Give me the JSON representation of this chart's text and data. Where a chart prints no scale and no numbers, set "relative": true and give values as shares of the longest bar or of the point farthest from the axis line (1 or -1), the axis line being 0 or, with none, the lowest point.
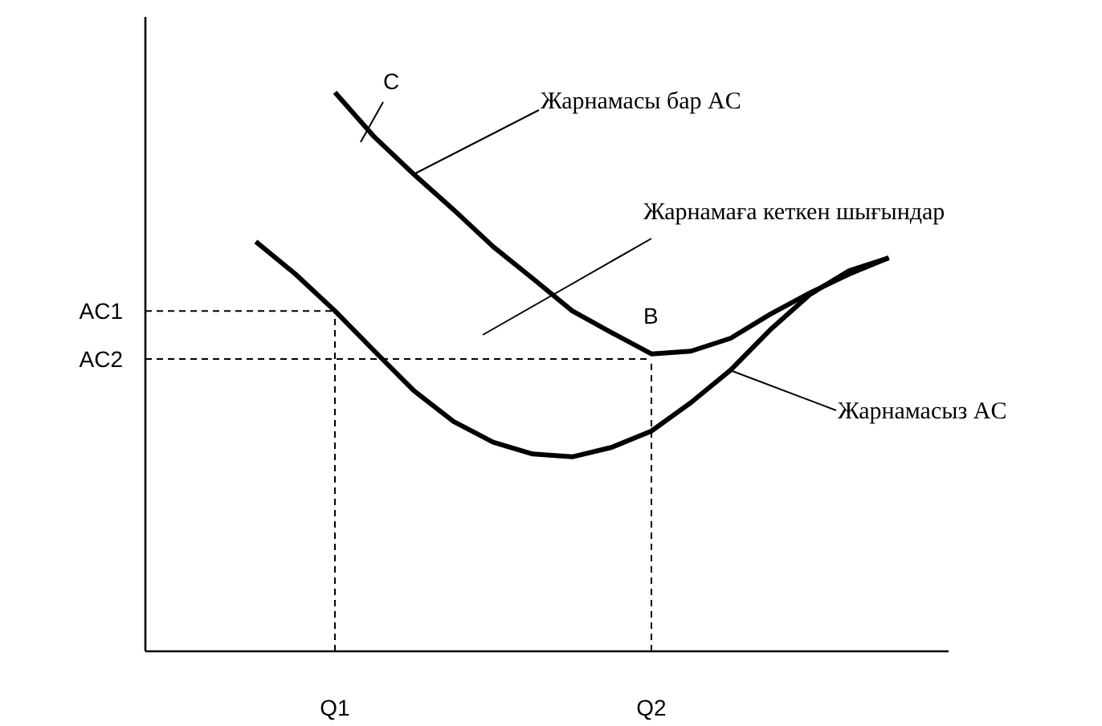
{
  "chart_data": {
    "type": "line",
    "relative": true,
    "grid": false,
    "marker": "none",
    "line_style": "solid",
    "categories": [
      null,
      null,
      "Q1",
      null,
      null,
      null,
      null,
      null,
      null,
      null,
      "Q2",
      null,
      null,
      null,
      null,
      null,
      null
    ],
    "series": [
      {
        "color": "#000000",
        "values": [
          null,
          null,
          1.0,
          0.92,
          0.853,
          0.79,
          0.724,
          0.667,
          0.609,
          0.57,
          0.532,
          0.537,
          0.56,
          0.603,
          0.641,
          0.675,
          0.704
        ]
      },
      {
        "color": "#000000",
        "values": [
          0.733,
          0.675,
          0.609,
          0.537,
          0.466,
          0.411,
          0.374,
          0.353,
          0.348,
          0.365,
          0.394,
          0.445,
          0.503,
          0.575,
          0.638,
          0.681,
          0.704
        ]
      }
    ],
    "ref_lines": [
      {
        "axis": "y",
        "value": 0.609,
        "label": "AC1",
        "line_style": "dashed"
      },
      {
        "axis": "y",
        "value": 0.523,
        "label": "AC2",
        "line_style": "dashed"
      },
      {
        "axis": "x",
        "value": "Q1",
        "line_style": "dashed"
      },
      {
        "axis": "x",
        "value": "Q2",
        "line_style": "dashed"
      }
    ],
    "annotations": [
      "C",
      "Жарнамасы бар AC",
      {
        "text": "B",
        "x": "Q2",
        "y": 0.532
      },
      "Жарнамаға кеткен шығындар",
      "Жарнамасыз AC"
    ]
  }
}
